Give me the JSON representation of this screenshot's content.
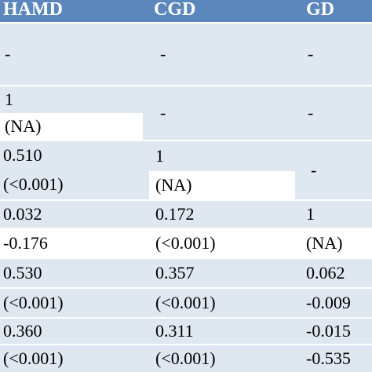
{
  "header": {
    "c1": "HAMD",
    "c2": "CGD",
    "c3": "GD"
  },
  "rows": [
    {
      "c1": "-",
      "c2": "-",
      "c3": "-"
    },
    {
      "c1a": "1",
      "c1b": "(NA)",
      "c2": "-",
      "c3": "-"
    },
    {
      "c1a": "0.510",
      "c1b": "(<0.001)",
      "c2a": "1",
      "c2b": "(NA)",
      "c3": "-"
    },
    {
      "c1": "0.032",
      "c2": "0.172",
      "c3": "1"
    },
    {
      "c1": "-0.176",
      "c2": "(<0.001)",
      "c3": "(NA)"
    },
    {
      "c1": "0.530",
      "c2": "0.357",
      "c3": "0.062"
    },
    {
      "c1": "(<0.001)",
      "c2": "(<0.001)",
      "c3": "-0.009"
    },
    {
      "c1": "0.360",
      "c2": "0.311",
      "c3": "-0.015"
    },
    {
      "c1": "(<0.001)",
      "c2": "(<0.001)",
      "c3": "-0.535"
    }
  ],
  "colors": {
    "header_bg": "#5b87bc",
    "row_bg": "#dfe7f1",
    "white": "#ffffff"
  }
}
